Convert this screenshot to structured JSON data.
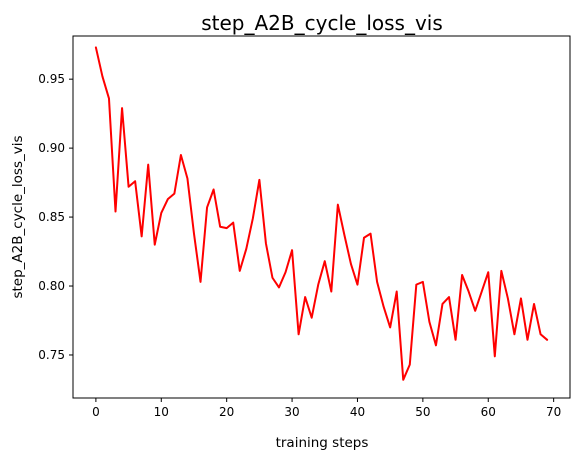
{
  "chart_data": {
    "type": "line",
    "title": "step_A2B_cycle_loss_vis",
    "xlabel": "training steps",
    "ylabel": "step_A2B_cycle_loss_vis",
    "xlim": [
      -3.5,
      72.5
    ],
    "ylim": [
      0.7188,
      0.9813
    ],
    "xticks": [
      0,
      10,
      20,
      30,
      40,
      50,
      60,
      70
    ],
    "xtick_labels": [
      "0",
      "10",
      "20",
      "30",
      "40",
      "50",
      "60",
      "70"
    ],
    "yticks": [
      0.75,
      0.8,
      0.85,
      0.9,
      0.95
    ],
    "ytick_labels": [
      "0.75",
      "0.80",
      "0.85",
      "0.90",
      "0.95"
    ],
    "grid": false,
    "legend": "none",
    "series": [
      {
        "color": "#ff0000",
        "x": [
          0,
          1,
          2,
          3,
          4,
          5,
          6,
          7,
          8,
          9,
          10,
          11,
          12,
          13,
          14,
          15,
          16,
          17,
          18,
          19,
          20,
          21,
          22,
          23,
          24,
          25,
          26,
          27,
          28,
          29,
          30,
          31,
          32,
          33,
          34,
          35,
          36,
          37,
          38,
          39,
          40,
          41,
          42,
          43,
          44,
          45,
          46,
          47,
          48,
          49,
          50,
          51,
          52,
          53,
          54,
          55,
          56,
          57,
          58,
          59,
          60,
          61,
          62,
          63,
          64,
          65,
          66,
          67,
          68,
          69
        ],
        "values": [
          0.973,
          0.952,
          0.936,
          0.854,
          0.929,
          0.872,
          0.876,
          0.836,
          0.888,
          0.83,
          0.853,
          0.863,
          0.867,
          0.895,
          0.878,
          0.838,
          0.803,
          0.857,
          0.87,
          0.843,
          0.842,
          0.846,
          0.811,
          0.827,
          0.849,
          0.877,
          0.831,
          0.806,
          0.799,
          0.81,
          0.826,
          0.765,
          0.792,
          0.777,
          0.801,
          0.818,
          0.796,
          0.859,
          0.837,
          0.816,
          0.801,
          0.835,
          0.838,
          0.803,
          0.785,
          0.77,
          0.796,
          0.732,
          0.743,
          0.801,
          0.803,
          0.774,
          0.757,
          0.787,
          0.792,
          0.761,
          0.808,
          0.796,
          0.782,
          0.796,
          0.81,
          0.749,
          0.811,
          0.791,
          0.765,
          0.791,
          0.761,
          0.787,
          0.765,
          0.761
        ]
      }
    ]
  }
}
